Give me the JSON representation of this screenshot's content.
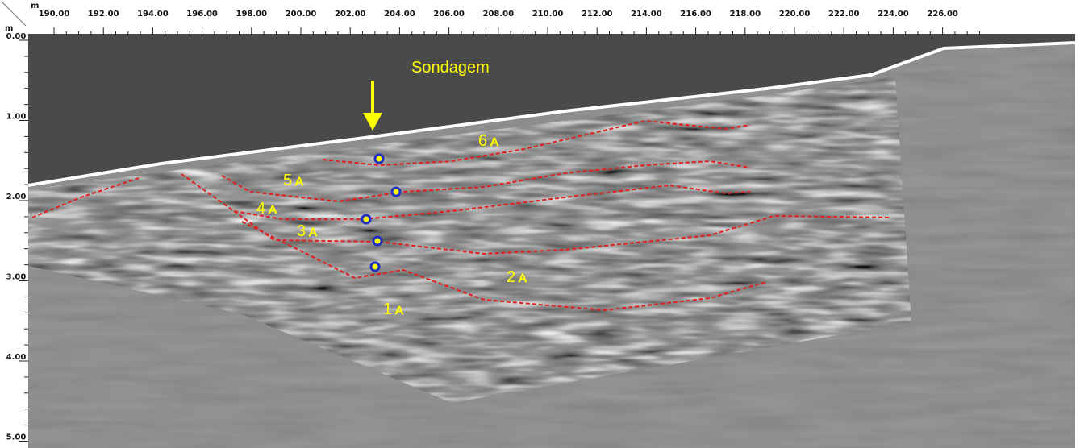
{
  "x_axis": {
    "unit": "m",
    "ticks": [
      "190.00",
      "192.00",
      "194.00",
      "196.00",
      "198.00",
      "200.00",
      "202.00",
      "204.00",
      "206.00",
      "208.00",
      "210.00",
      "212.00",
      "214.00",
      "216.00",
      "218.00",
      "220.00",
      "222.00",
      "224.00",
      "226.00"
    ]
  },
  "y_axis": {
    "unit": "m",
    "ticks": [
      "0.00",
      "1.00",
      "2.00",
      "3.00",
      "4.00",
      "5.00"
    ]
  },
  "annotation": "Sondagem",
  "layers": [
    {
      "number": "6",
      "letter": "A"
    },
    {
      "number": "5",
      "letter": "A"
    },
    {
      "number": "4",
      "letter": "A"
    },
    {
      "number": "3",
      "letter": "A"
    },
    {
      "number": "2",
      "letter": "A"
    },
    {
      "number": "1",
      "letter": "A"
    }
  ]
}
